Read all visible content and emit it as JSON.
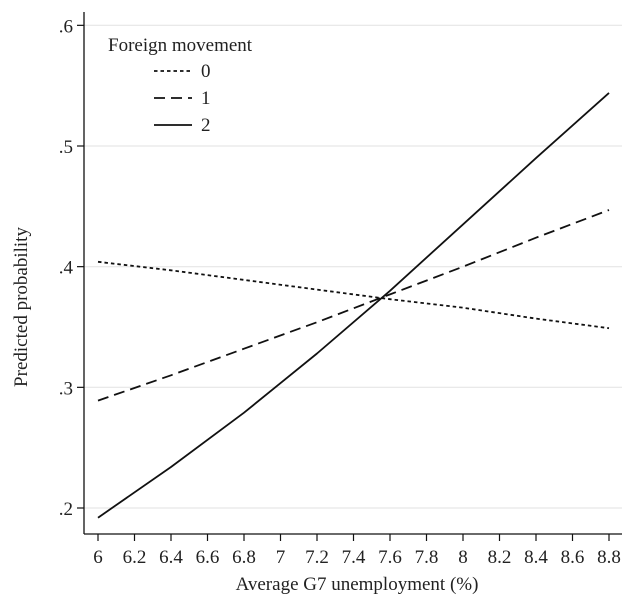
{
  "chart_data": {
    "type": "line",
    "title": "",
    "xlabel": "Average G7 unemployment (%)",
    "ylabel": "Predicted probability",
    "xlim": [
      6,
      8.8
    ],
    "ylim": [
      0.19,
      0.61
    ],
    "x_ticks": [
      6,
      6.2,
      6.4,
      6.6,
      6.8,
      7,
      7.2,
      7.4,
      7.6,
      7.8,
      8,
      8.2,
      8.4,
      8.6,
      8.8
    ],
    "x_tick_labels": [
      "6",
      "6.2",
      "6.4",
      "6.6",
      "6.8",
      "7",
      "7.2",
      "7.4",
      "7.6",
      "7.8",
      "8",
      "8.2",
      "8.4",
      "8.6",
      "8.8"
    ],
    "y_ticks": [
      0.2,
      0.3,
      0.4,
      0.5,
      0.6
    ],
    "y_tick_labels": [
      ".2",
      ".3",
      ".4",
      ".5",
      ".6"
    ],
    "grid": true,
    "legend": {
      "title": "Foreign movement",
      "position": "top-left",
      "entries": [
        "0",
        "1",
        "2"
      ]
    },
    "series": [
      {
        "name": "0",
        "style": "dotted",
        "x": [
          6,
          6.4,
          6.8,
          7.2,
          7.6,
          8,
          8.4,
          8.8
        ],
        "y": [
          0.404,
          0.397,
          0.389,
          0.381,
          0.373,
          0.366,
          0.357,
          0.349
        ]
      },
      {
        "name": "1",
        "style": "dashed",
        "x": [
          6,
          6.4,
          6.8,
          7.2,
          7.6,
          8,
          8.4,
          8.8
        ],
        "y": [
          0.289,
          0.31,
          0.332,
          0.354,
          0.377,
          0.4,
          0.424,
          0.447
        ]
      },
      {
        "name": "2",
        "style": "solid",
        "x": [
          6,
          6.4,
          6.8,
          7.2,
          7.6,
          8,
          8.4,
          8.8
        ],
        "y": [
          0.192,
          0.234,
          0.279,
          0.328,
          0.38,
          0.435,
          0.49,
          0.544
        ]
      }
    ],
    "line_color": "#111111",
    "grid_color": "#e6e6e6"
  }
}
